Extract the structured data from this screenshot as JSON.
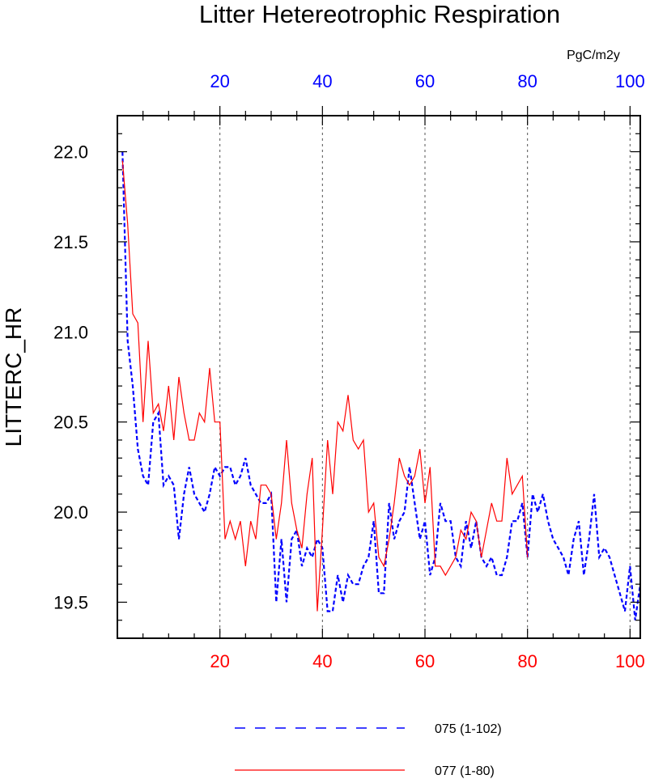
{
  "chart_data": {
    "type": "line",
    "title": "Litter Hetereotrophic Respiration",
    "ylabel": "LITTERC_HR",
    "top_axis_units": "PgC/m2y",
    "xlim": [
      0,
      102
    ],
    "ylim": [
      19.3,
      22.2
    ],
    "x_ticks_bottom": [
      20,
      40,
      60,
      80,
      100
    ],
    "x_ticks_top": [
      20,
      40,
      60,
      80,
      100
    ],
    "y_ticks": [
      19.5,
      20.0,
      20.5,
      21.0,
      21.5,
      22.0
    ],
    "y_tick_labels": [
      "19.5",
      "20.0",
      "20.5",
      "21.0",
      "21.5",
      "22.0"
    ],
    "vertical_gridlines_at": [
      20,
      40,
      60,
      80,
      100
    ],
    "colors": {
      "series_075": "#0000ff",
      "series_077": "#ff0000",
      "top_axis": "#0000ff",
      "bottom_axis": "#ff0000"
    },
    "series": [
      {
        "name": "075 (1-102)",
        "style": "dashed",
        "color": "#0000ff",
        "values": [
          22.0,
          20.95,
          20.7,
          20.35,
          20.2,
          20.15,
          20.5,
          20.55,
          20.15,
          20.2,
          20.15,
          19.85,
          20.1,
          20.25,
          20.1,
          20.05,
          20.0,
          20.1,
          20.25,
          20.2,
          20.25,
          20.25,
          20.15,
          20.2,
          20.3,
          20.15,
          20.1,
          20.05,
          20.05,
          20.1,
          19.5,
          19.85,
          19.5,
          19.85,
          19.9,
          19.7,
          19.8,
          19.75,
          19.85,
          19.8,
          19.45,
          19.45,
          19.65,
          19.5,
          19.65,
          19.6,
          19.6,
          19.7,
          19.75,
          19.95,
          19.55,
          19.55,
          20.05,
          19.85,
          19.95,
          20.0,
          20.25,
          20.05,
          19.85,
          19.95,
          19.65,
          19.75,
          20.05,
          19.95,
          19.95,
          19.75,
          19.7,
          19.95,
          19.8,
          19.95,
          19.75,
          19.7,
          19.75,
          19.65,
          19.65,
          19.75,
          19.95,
          19.95,
          20.05,
          19.75,
          20.1,
          20.0,
          20.1,
          19.95,
          19.85,
          19.8,
          19.75,
          19.65,
          19.85,
          19.95,
          19.65,
          19.85,
          20.1,
          19.75,
          19.8,
          19.75,
          19.65,
          19.55,
          19.45,
          19.7,
          19.4,
          19.6
        ]
      },
      {
        "name": "077 (1-80)",
        "style": "solid",
        "color": "#ff0000",
        "values": [
          21.95,
          21.6,
          21.1,
          21.05,
          20.5,
          20.95,
          20.55,
          20.6,
          20.45,
          20.7,
          20.4,
          20.75,
          20.55,
          20.4,
          20.4,
          20.55,
          20.5,
          20.8,
          20.5,
          20.5,
          19.85,
          19.95,
          19.85,
          19.95,
          19.7,
          19.95,
          19.85,
          20.15,
          20.15,
          20.1,
          19.85,
          20.05,
          20.4,
          20.05,
          19.9,
          19.8,
          20.1,
          20.3,
          19.45,
          19.9,
          20.4,
          20.1,
          20.5,
          20.45,
          20.65,
          20.4,
          20.35,
          20.4,
          20.0,
          20.05,
          19.75,
          19.7,
          19.85,
          20.05,
          20.3,
          20.2,
          20.15,
          20.2,
          20.35,
          20.05,
          20.25,
          19.7,
          19.7,
          19.65,
          19.7,
          19.75,
          19.9,
          19.85,
          20.0,
          19.95,
          19.75,
          19.9,
          20.05,
          19.95,
          19.95,
          20.3,
          20.1,
          20.15,
          20.2,
          19.75
        ]
      }
    ],
    "legend": [
      {
        "label": "075 (1-102)",
        "style": "dashed",
        "color": "#0000ff"
      },
      {
        "label": "077 (1-80)",
        "style": "solid",
        "color": "#ff0000"
      }
    ]
  }
}
